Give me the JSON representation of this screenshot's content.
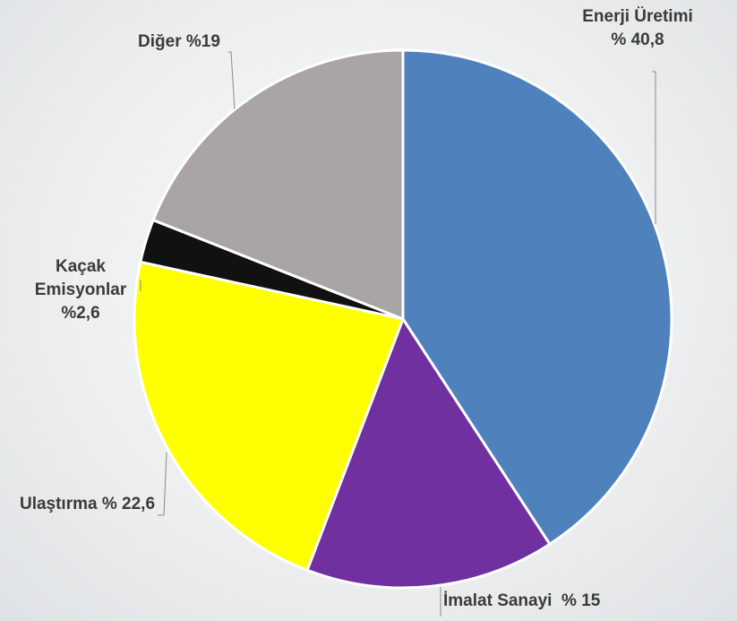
{
  "chart_data": {
    "type": "pie",
    "categories": [
      "Enerji Üretimi",
      "İmalat Sanayi",
      "Ulaştırma",
      "Kaçak Emisyonlar",
      "Diğer"
    ],
    "values": [
      40.8,
      15,
      22.6,
      2.6,
      19
    ],
    "value_labels": [
      "% 40,8",
      "% 15",
      "% 22,6",
      "%2,6",
      "%19"
    ],
    "colors": [
      "#4f81bd",
      "#7030a0",
      "#ffff00",
      "#111111",
      "#a9a5a4"
    ]
  }
}
